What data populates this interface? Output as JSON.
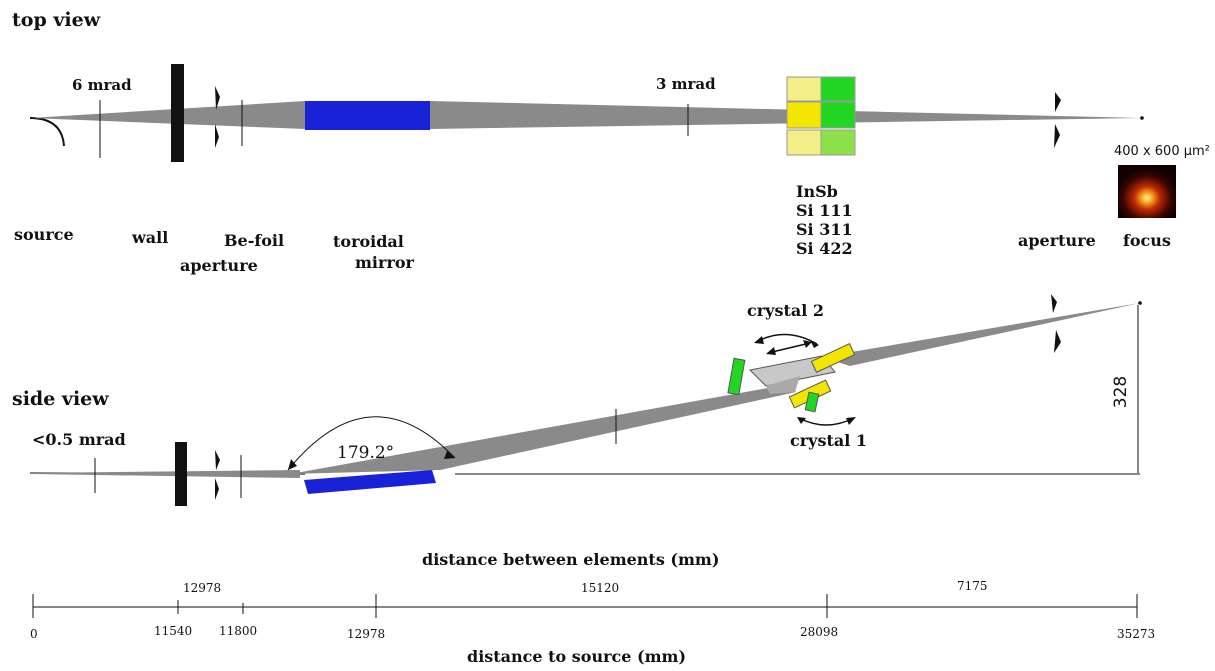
{
  "top_view": {
    "title": "top view",
    "angle_source": "6 mrad",
    "angle_crystal": "3 mrad",
    "focus_size": "400 x 600 µm²",
    "labels": {
      "source": "source",
      "wall": "wall",
      "be_foil": "Be-foil",
      "aperture1": "aperture",
      "toroidal": "toroidal",
      "mirror": "mirror",
      "aperture2": "aperture",
      "focus": "focus"
    },
    "crystals": [
      "InSb",
      "Si 111",
      "Si 311",
      "Si 422"
    ]
  },
  "side_view": {
    "title": "side view",
    "angle": "<0.5 mrad",
    "mirror_angle": "179.2°",
    "crystal2": "crystal 2",
    "crystal1": "crystal 1",
    "height": "328"
  },
  "scales": {
    "between_title": "distance between elements (mm)",
    "between": [
      "12978",
      "15120",
      "7175"
    ],
    "to_source_title": "distance to source (mm)",
    "to_source": [
      "0",
      "11540",
      "11800",
      "12978",
      "28098",
      "35273"
    ]
  },
  "colors": {
    "beam": "#8a8a8a",
    "mirror": "#1a22d8",
    "crystal_yellow": "#f2e600",
    "crystal_yellow_light": "#f2ee88",
    "crystal_green": "#22d622",
    "crystal_green_light": "#8ee04a"
  }
}
